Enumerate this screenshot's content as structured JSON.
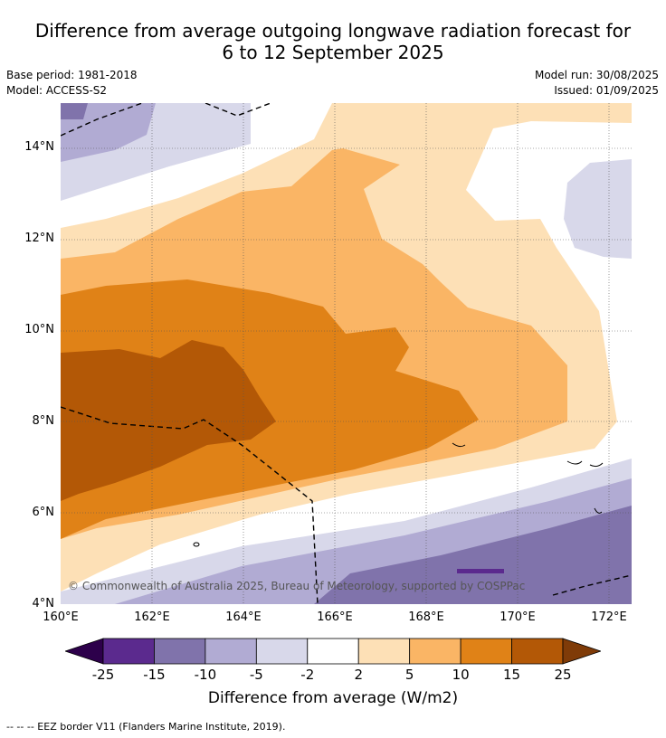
{
  "title_line1": "Difference from average outgoing longwave radiation forecast for",
  "title_line2": "6 to 12 September 2025",
  "meta_left": {
    "base_period": "Base period: 1981-2018",
    "model": "Model: ACCESS-S2"
  },
  "meta_right": {
    "model_run": "Model run: 30/08/2025",
    "issued": "Issued: 01/09/2025"
  },
  "map": {
    "lat_labels": [
      "14°N",
      "12°N",
      "10°N",
      "8°N",
      "6°N",
      "4°N"
    ],
    "lon_labels": [
      "160°E",
      "162°E",
      "164°E",
      "166°E",
      "168°E",
      "170°E",
      "172°E"
    ],
    "copyright": "© Commonwealth of Australia 2025, Bureau of Meteorology, supported by COSPPac",
    "colors": {
      "purple_dark": "#5b2a8e",
      "purple_mid": "#8073ab",
      "purple_light": "#b1abd3",
      "purple_pale": "#d8d8ea",
      "white": "#ffffff",
      "orange_pale": "#fde0b6",
      "orange_light": "#fab565",
      "orange_mid": "#e08217",
      "orange_dark": "#b35806"
    }
  },
  "colorbar": {
    "ticks": [
      "-25",
      "-15",
      "-10",
      "-5",
      "-2",
      "2",
      "5",
      "10",
      "15",
      "25"
    ],
    "colors": [
      "#5b2a8e",
      "#8073ab",
      "#b1abd3",
      "#d8d8ea",
      "#ffffff",
      "#fde0b6",
      "#fab565",
      "#e08217",
      "#b35806"
    ],
    "end_low_color": "#2d004b",
    "end_high_color": "#7f3b08",
    "label": "Difference from average (W/m2)"
  },
  "legend": {
    "eez": "--  --  -- EEZ border V11 (Flanders Marine Institute, 2019)."
  }
}
